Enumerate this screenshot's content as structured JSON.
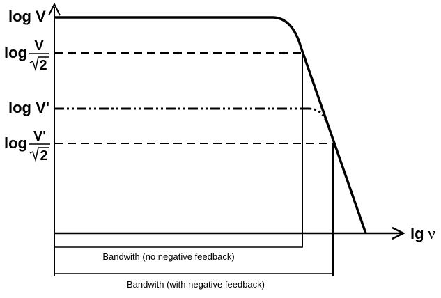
{
  "labels": {
    "log_v": "log V",
    "log_v_over_root2": {
      "prefix": "log",
      "numerator": "V",
      "denominator": "2"
    },
    "log_v_prime": "log V'",
    "log_v_prime_over_root2": {
      "prefix": "log",
      "numerator": "V'",
      "denominator": "2"
    },
    "x_axis": {
      "prefix": "lg",
      "variable": "ν"
    }
  },
  "bandwidths": {
    "no_feedback": "Bandwith (no negative feedback)",
    "with_feedback": "Bandwith (with negative feedback)"
  }
}
